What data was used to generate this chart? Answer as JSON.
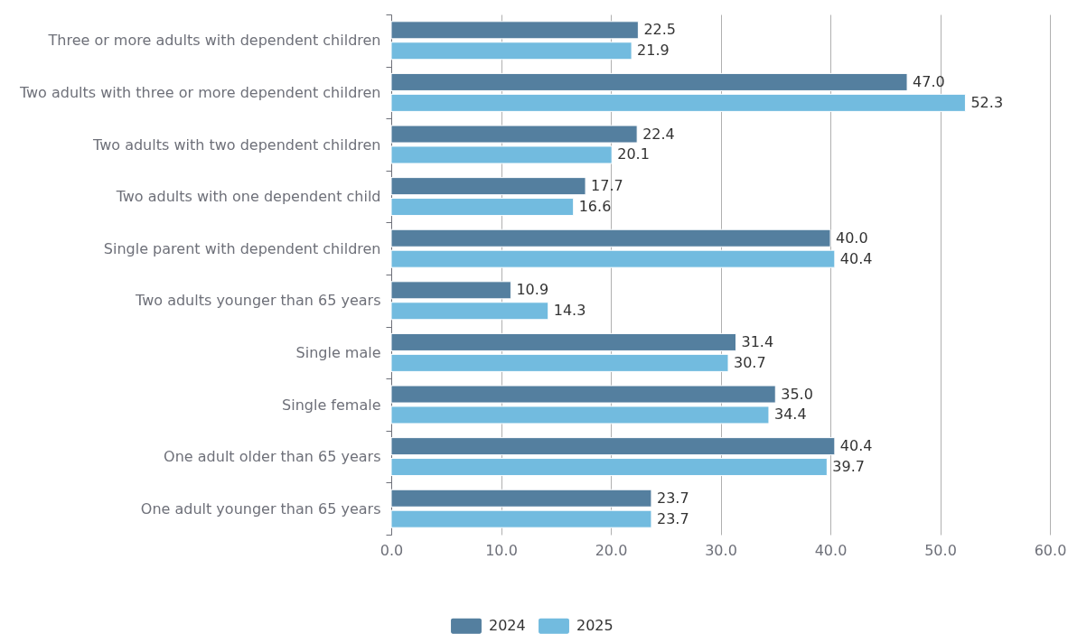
{
  "chart_data": {
    "type": "bar",
    "orientation": "horizontal",
    "categories": [
      "Three or more adults with dependent children",
      "Two adults with three or more dependent children",
      "Two adults with two dependent children",
      "Two adults with one dependent child",
      "Single parent with dependent children",
      "Two adults younger than 65 years",
      "Single male",
      "Single female",
      "One adult older than 65 years",
      "One adult younger than 65 years"
    ],
    "series": [
      {
        "name": "2024",
        "color": "#547f9f",
        "values": [
          22.5,
          47.0,
          22.4,
          17.7,
          40.0,
          10.9,
          31.4,
          35.0,
          40.4,
          23.7
        ],
        "value_labels": [
          "22.5",
          "47.0",
          "22.4",
          "17.7",
          "40.0",
          "10.9",
          "31.4",
          "35.0",
          "40.4",
          "23.7"
        ]
      },
      {
        "name": "2025",
        "color": "#72bbdf",
        "values": [
          21.9,
          52.3,
          20.1,
          16.6,
          40.4,
          14.3,
          30.7,
          34.4,
          39.7,
          23.7
        ],
        "value_labels": [
          "21.9",
          "52.3",
          "20.1",
          "16.6",
          "40.4",
          "14.3",
          "30.7",
          "34.4",
          "39.7",
          "23.7"
        ]
      }
    ],
    "xlim": [
      0,
      60
    ],
    "xticks": [
      {
        "value": 0,
        "label": "0.0"
      },
      {
        "value": 10,
        "label": "10.0"
      },
      {
        "value": 20,
        "label": "20.0"
      },
      {
        "value": 30,
        "label": "30.0"
      },
      {
        "value": 40,
        "label": "40.0"
      },
      {
        "value": 50,
        "label": "50.0"
      },
      {
        "value": 60,
        "label": "60.0"
      }
    ],
    "grid": "x",
    "legend": "bottom"
  }
}
